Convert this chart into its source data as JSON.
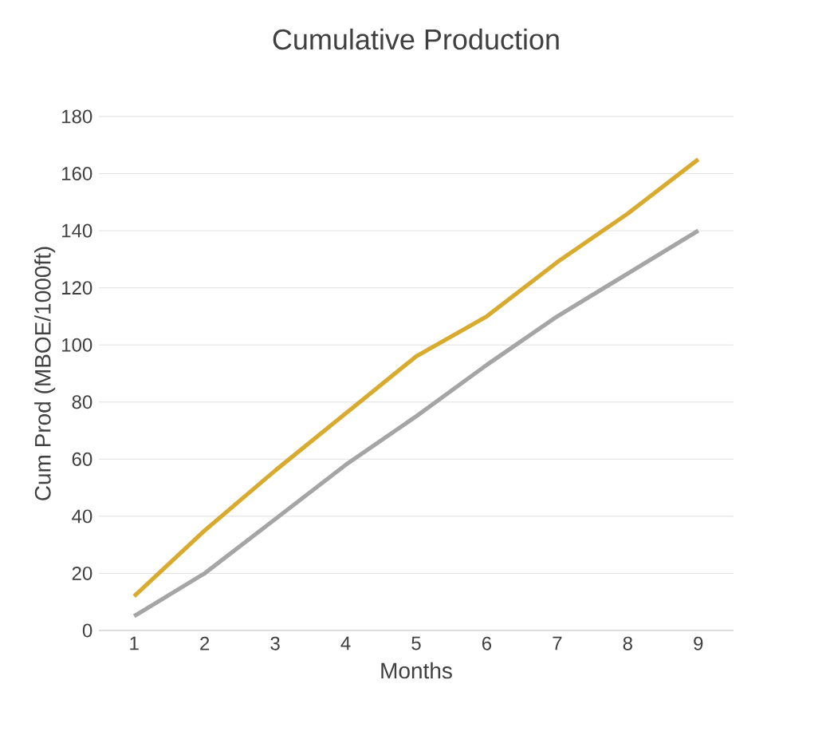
{
  "chart_data": {
    "type": "line",
    "title": "Cumulative Production",
    "xlabel": "Months",
    "ylabel": "Cum Prod (MBOE/1000ft)",
    "categories": [
      "1",
      "2",
      "3",
      "4",
      "5",
      "6",
      "7",
      "8",
      "9"
    ],
    "series": [
      {
        "color": "#d8aa2e",
        "values": [
          12,
          35,
          56,
          76,
          96,
          110,
          129,
          146,
          165
        ]
      },
      {
        "color": "#a5a5a5",
        "values": [
          5,
          20,
          39,
          58,
          75,
          93,
          110,
          125,
          140
        ]
      }
    ],
    "ylim": [
      0,
      180
    ],
    "yticks": [
      0,
      20,
      40,
      60,
      80,
      100,
      120,
      140,
      160,
      180
    ],
    "grid": "y",
    "marker": "none",
    "line_style": "solid"
  }
}
